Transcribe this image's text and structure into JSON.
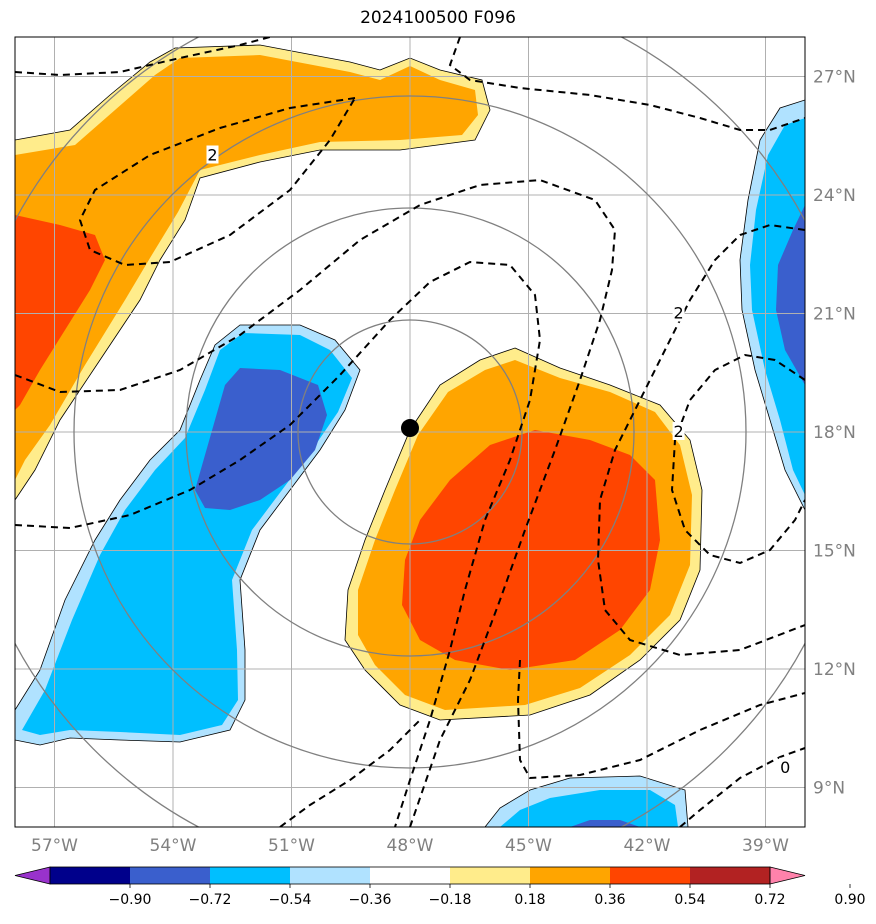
{
  "title": "2024100500 F096",
  "map": {
    "lon_range": [
      -58,
      -38
    ],
    "lat_range": [
      8,
      28
    ],
    "lon_ticks": [
      {
        "value": -57,
        "label": "57°W"
      },
      {
        "value": -54,
        "label": "54°W"
      },
      {
        "value": -51,
        "label": "51°W"
      },
      {
        "value": -48,
        "label": "48°W"
      },
      {
        "value": -45,
        "label": "45°W"
      },
      {
        "value": -42,
        "label": "42°W"
      },
      {
        "value": -39,
        "label": "39°W"
      }
    ],
    "lat_ticks": [
      {
        "value": 27,
        "label": "27°N"
      },
      {
        "value": 24,
        "label": "24°N"
      },
      {
        "value": 21,
        "label": "21°N"
      },
      {
        "value": 18,
        "label": "18°N"
      },
      {
        "value": 15,
        "label": "15°N"
      },
      {
        "value": 12,
        "label": "12°N"
      },
      {
        "value": 9,
        "label": "9°N"
      }
    ],
    "storm_center": {
      "lon": -48.0,
      "lat": 18.1
    },
    "range_rings": "concentric circles around storm center",
    "contour_labels": [
      {
        "text": "2",
        "lon": -53.0,
        "lat": 25.0
      },
      {
        "text": "2",
        "lon": -41.2,
        "lat": 21.0
      },
      {
        "text": "2",
        "lon": -41.2,
        "lat": 18.0
      },
      {
        "text": "0",
        "lon": -38.5,
        "lat": 9.5
      }
    ]
  },
  "colorbar": {
    "levels": [
      "−0.90",
      "−0.72",
      "−0.54",
      "−0.36",
      "−0.18",
      "0.18",
      "0.36",
      "0.54",
      "0.72",
      "0.90"
    ],
    "colors": [
      "#9932cc",
      "#00008b",
      "#3a5fcd",
      "#00bfff",
      "#b0e2ff",
      "#ffffff",
      "#ffec8b",
      "#ffa500",
      "#ff4500",
      "#b22222",
      "#ff82ab"
    ]
  }
}
